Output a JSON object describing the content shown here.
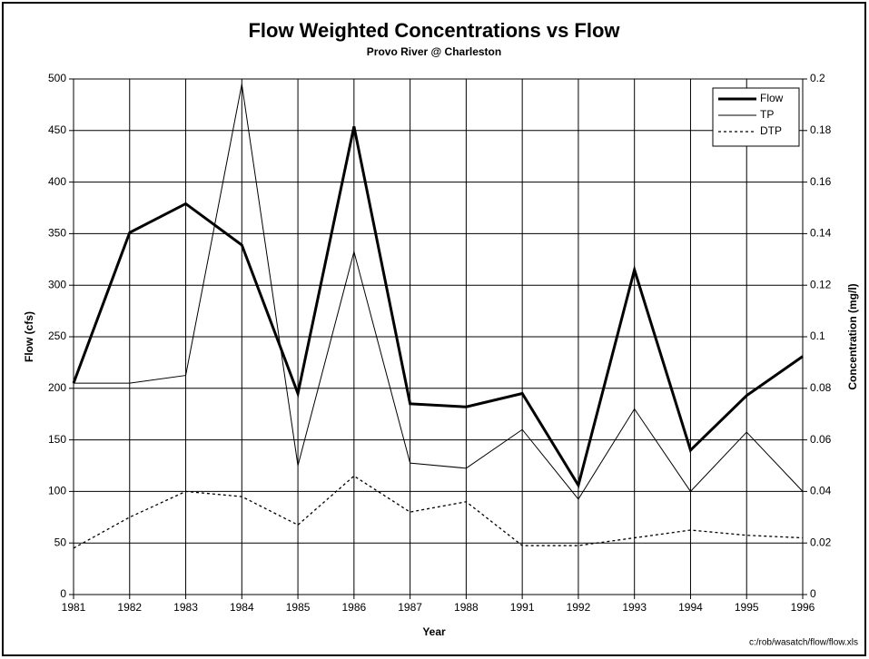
{
  "chart_data": {
    "type": "line",
    "title": "Flow Weighted Concentrations vs Flow",
    "subtitle": "Provo River @ Charleston",
    "x_label": "Year",
    "y_label": "Flow (cfs)",
    "y2_label": "Concentration (mg/l)",
    "note": "c:/rob/wasatch/flow/flow.xls",
    "categories": [
      "1981",
      "1982",
      "1983",
      "1984",
      "1985",
      "1986",
      "1987",
      "1988",
      "1991",
      "1992",
      "1993",
      "1994",
      "1995",
      "1996"
    ],
    "series": [
      {
        "name": "Flow",
        "color": "#000000",
        "line_width": 3,
        "dash": "solid",
        "values": [
          205,
          351,
          379,
          339,
          195,
          454,
          185,
          182,
          195,
          106,
          315,
          140,
          193,
          231
        ]
      },
      {
        "name": "TP",
        "color": "#000000",
        "line_width": 1,
        "dash": "solid",
        "axis": "y2",
        "values": [
          0.082,
          0.082,
          0.085,
          0.198,
          0.05,
          0.133,
          0.051,
          0.049,
          0.064,
          0.037,
          0.072,
          0.04,
          0.063,
          0.04
        ]
      },
      {
        "name": "DTP",
        "color": "#000000",
        "line_width": 1.3,
        "dash": "dotted",
        "axis": "y2",
        "values": [
          0.018,
          0.03,
          0.04,
          0.038,
          0.027,
          0.046,
          0.032,
          0.036,
          0.019,
          0.019,
          0.022,
          0.025,
          0.023,
          0.022
        ]
      }
    ],
    "ylim": [
      0,
      500
    ],
    "yticks": [
      0,
      50,
      100,
      150,
      200,
      250,
      300,
      350,
      400,
      450,
      500
    ],
    "y2lim": [
      0,
      0.2
    ],
    "y2ticks": [
      0,
      0.02,
      0.04,
      0.06,
      0.08,
      0.1,
      0.12,
      0.14,
      0.16,
      0.18,
      0.2
    ],
    "grid": true,
    "legend": "upper right"
  }
}
